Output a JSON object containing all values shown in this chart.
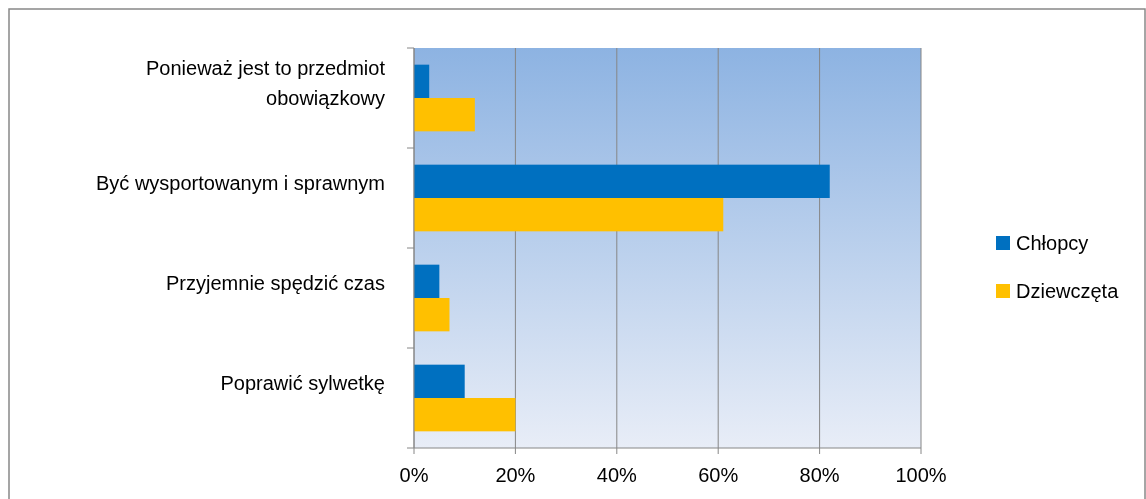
{
  "chart_data": {
    "type": "bar",
    "orientation": "horizontal",
    "categories": [
      "Ponieważ jest to przedmiot obowiązkowy",
      "Być wysportowanym i sprawnym",
      "Przyjemnie spędzić czas",
      "Poprawić sylwetkę"
    ],
    "series": [
      {
        "name": "Chłopcy",
        "color": "#0070c0",
        "values": [
          3,
          82,
          5,
          10
        ]
      },
      {
        "name": "Dziewczęta",
        "color": "#ffc000",
        "values": [
          12,
          61,
          7,
          20
        ]
      }
    ],
    "xlim": [
      0,
      100
    ],
    "xticks": [
      {
        "value": 0,
        "label": "0%"
      },
      {
        "value": 20,
        "label": "20%"
      },
      {
        "value": 40,
        "label": "40%"
      },
      {
        "value": 60,
        "label": "60%"
      },
      {
        "value": 80,
        "label": "80%"
      },
      {
        "value": 100,
        "label": "100%"
      }
    ],
    "grid": "x",
    "legend": "right"
  }
}
